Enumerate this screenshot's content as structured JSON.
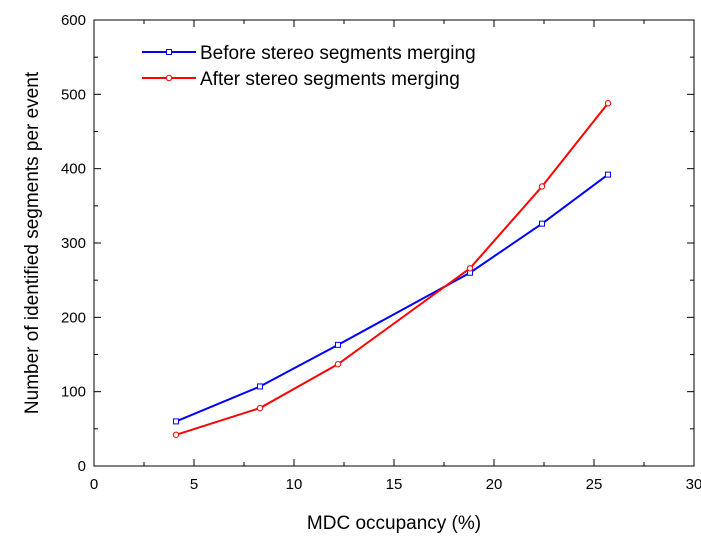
{
  "chart_data": {
    "type": "line",
    "title": "",
    "xlabel": "MDC occupancy (%)",
    "ylabel": "Number of identified segments per event",
    "xlim": [
      0,
      30
    ],
    "ylim": [
      0,
      600
    ],
    "x_ticks": [
      0,
      5,
      10,
      15,
      20,
      25,
      30
    ],
    "x_tick_labels": [
      "0",
      "5",
      "10",
      "15",
      "20",
      "25",
      "30"
    ],
    "y_ticks": [
      0,
      100,
      200,
      300,
      400,
      500,
      600
    ],
    "y_tick_labels": [
      "0",
      "100",
      "200",
      "300",
      "400",
      "500",
      "600"
    ],
    "grid": false,
    "legend_position": "top-left",
    "series": [
      {
        "name": "Before stereo segments merging",
        "color": "#0000ff",
        "marker": "square",
        "x": [
          4.1,
          8.3,
          12.2,
          18.8,
          22.4,
          25.7
        ],
        "y": [
          60,
          107,
          163,
          260,
          326,
          392
        ]
      },
      {
        "name": "After stereo segments merging",
        "color": "#ff0000",
        "marker": "circle",
        "x": [
          4.1,
          8.3,
          12.2,
          18.8,
          22.4,
          25.7
        ],
        "y": [
          42,
          78,
          137,
          266,
          376,
          488
        ]
      }
    ]
  }
}
